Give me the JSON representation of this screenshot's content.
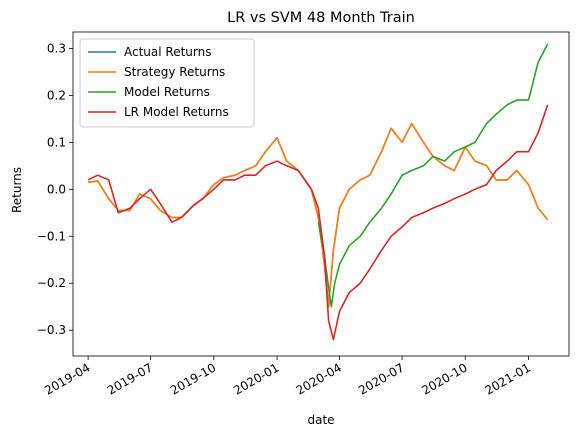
{
  "chart_data": {
    "type": "line",
    "title": "LR vs SVM 48 Month Train",
    "xlabel": "date",
    "ylabel": "Returns",
    "xlim": [
      "2019-03-10",
      "2021-03-01"
    ],
    "ylim": [
      -0.355,
      0.335
    ],
    "x_ticks": [
      {
        "date": "2019-04-01",
        "label": "2019-04"
      },
      {
        "date": "2019-07-01",
        "label": "2019-07"
      },
      {
        "date": "2019-10-01",
        "label": "2019-10"
      },
      {
        "date": "2020-01-01",
        "label": "2020-01"
      },
      {
        "date": "2020-04-01",
        "label": "2020-04"
      },
      {
        "date": "2020-07-01",
        "label": "2020-07"
      },
      {
        "date": "2020-10-01",
        "label": "2020-10"
      },
      {
        "date": "2021-01-01",
        "label": "2021-01"
      }
    ],
    "y_ticks": [
      {
        "value": -0.3,
        "label": "−0.3"
      },
      {
        "value": -0.2,
        "label": "−0.2"
      },
      {
        "value": -0.1,
        "label": "−0.1"
      },
      {
        "value": 0.0,
        "label": "0.0"
      },
      {
        "value": 0.1,
        "label": "0.1"
      },
      {
        "value": 0.2,
        "label": "0.2"
      },
      {
        "value": 0.3,
        "label": "0.3"
      }
    ],
    "legend_position": "top-left",
    "grid": false,
    "series": [
      {
        "name": "Actual Returns",
        "color": "#1f77b4",
        "x": [
          "2019-04-01",
          "2019-04-15",
          "2019-05-01",
          "2019-05-15",
          "2019-06-01",
          "2019-06-15",
          "2019-07-01",
          "2019-07-15",
          "2019-08-01",
          "2019-08-15",
          "2019-09-01",
          "2019-09-15",
          "2019-10-01",
          "2019-10-15",
          "2019-11-01",
          "2019-11-15",
          "2019-12-01",
          "2019-12-15",
          "2020-01-01",
          "2020-01-15",
          "2020-02-01",
          "2020-02-20",
          "2020-03-01",
          "2020-03-10",
          "2020-03-16",
          "2020-03-23",
          "2020-04-01",
          "2020-04-15",
          "2020-05-01",
          "2020-05-15",
          "2020-06-01",
          "2020-06-15",
          "2020-07-01",
          "2020-07-15",
          "2020-08-01",
          "2020-08-15",
          "2020-09-01",
          "2020-09-15",
          "2020-10-01",
          "2020-10-15",
          "2020-11-01",
          "2020-11-15",
          "2020-12-01",
          "2020-12-15",
          "2021-01-01",
          "2021-01-15",
          "2021-01-29"
        ],
        "y": [
          0.015,
          0.018,
          -0.02,
          -0.045,
          -0.045,
          -0.01,
          -0.02,
          -0.045,
          -0.06,
          -0.06,
          -0.035,
          -0.02,
          0.01,
          0.025,
          0.03,
          0.04,
          0.05,
          0.08,
          0.11,
          0.06,
          0.04,
          0.0,
          -0.06,
          -0.16,
          -0.25,
          -0.13,
          -0.04,
          0.0,
          0.02,
          0.03,
          0.08,
          0.13,
          0.1,
          0.14,
          0.1,
          0.07,
          0.05,
          0.04,
          0.09,
          0.06,
          0.05,
          0.02,
          0.02,
          0.04,
          0.01,
          -0.04,
          -0.065
        ]
      },
      {
        "name": "Strategy Returns",
        "color": "#ff7f0e",
        "x": [
          "2019-04-01",
          "2019-04-15",
          "2019-05-01",
          "2019-05-15",
          "2019-06-01",
          "2019-06-15",
          "2019-07-01",
          "2019-07-15",
          "2019-08-01",
          "2019-08-15",
          "2019-09-01",
          "2019-09-15",
          "2019-10-01",
          "2019-10-15",
          "2019-11-01",
          "2019-11-15",
          "2019-12-01",
          "2019-12-15",
          "2020-01-01",
          "2020-01-15",
          "2020-02-01",
          "2020-02-20",
          "2020-03-01",
          "2020-03-10",
          "2020-03-16",
          "2020-03-23",
          "2020-04-01",
          "2020-04-15",
          "2020-05-01",
          "2020-05-15",
          "2020-06-01",
          "2020-06-15",
          "2020-07-01",
          "2020-07-15",
          "2020-08-01",
          "2020-08-15",
          "2020-09-01",
          "2020-09-15",
          "2020-10-01",
          "2020-10-15",
          "2020-11-01",
          "2020-11-15",
          "2020-12-01",
          "2020-12-15",
          "2021-01-01",
          "2021-01-15",
          "2021-01-29"
        ],
        "y": [
          0.015,
          0.018,
          -0.02,
          -0.045,
          -0.045,
          -0.01,
          -0.02,
          -0.045,
          -0.06,
          -0.06,
          -0.035,
          -0.02,
          0.01,
          0.025,
          0.03,
          0.04,
          0.05,
          0.08,
          0.11,
          0.06,
          0.04,
          0.0,
          -0.06,
          -0.16,
          -0.25,
          -0.13,
          -0.04,
          0.0,
          0.02,
          0.03,
          0.08,
          0.13,
          0.1,
          0.14,
          0.1,
          0.07,
          0.05,
          0.04,
          0.09,
          0.06,
          0.05,
          0.02,
          0.02,
          0.04,
          0.01,
          -0.04,
          -0.065
        ]
      },
      {
        "name": "Model Returns",
        "color": "#2ca02c",
        "x": [
          "2020-03-01",
          "2020-03-10",
          "2020-03-16",
          "2020-03-20",
          "2020-03-25",
          "2020-04-01",
          "2020-04-15",
          "2020-05-01",
          "2020-05-15",
          "2020-06-01",
          "2020-06-15",
          "2020-07-01",
          "2020-07-15",
          "2020-08-01",
          "2020-08-15",
          "2020-09-01",
          "2020-09-15",
          "2020-10-01",
          "2020-10-15",
          "2020-11-01",
          "2020-11-15",
          "2020-12-01",
          "2020-12-15",
          "2021-01-01",
          "2021-01-15",
          "2021-01-29"
        ],
        "y": [
          -0.07,
          -0.14,
          -0.21,
          -0.25,
          -0.2,
          -0.16,
          -0.12,
          -0.1,
          -0.07,
          -0.04,
          -0.01,
          0.03,
          0.04,
          0.05,
          0.07,
          0.06,
          0.08,
          0.09,
          0.1,
          0.14,
          0.16,
          0.18,
          0.19,
          0.19,
          0.27,
          0.31
        ]
      },
      {
        "name": "LR Model Returns",
        "color": "#d62728",
        "x": [
          "2019-04-01",
          "2019-04-15",
          "2019-05-01",
          "2019-05-15",
          "2019-06-01",
          "2019-06-15",
          "2019-07-01",
          "2019-07-15",
          "2019-08-01",
          "2019-08-15",
          "2019-09-01",
          "2019-09-15",
          "2019-10-01",
          "2019-10-15",
          "2019-11-01",
          "2019-11-15",
          "2019-12-01",
          "2019-12-15",
          "2020-01-01",
          "2020-01-15",
          "2020-02-01",
          "2020-02-20",
          "2020-03-01",
          "2020-03-10",
          "2020-03-16",
          "2020-03-23",
          "2020-04-01",
          "2020-04-15",
          "2020-05-01",
          "2020-05-15",
          "2020-06-01",
          "2020-06-15",
          "2020-07-01",
          "2020-07-15",
          "2020-08-01",
          "2020-08-15",
          "2020-09-01",
          "2020-09-15",
          "2020-10-01",
          "2020-10-15",
          "2020-11-01",
          "2020-11-15",
          "2020-12-01",
          "2020-12-15",
          "2021-01-01",
          "2021-01-15",
          "2021-01-29"
        ],
        "y": [
          0.02,
          0.03,
          0.02,
          -0.05,
          -0.04,
          -0.02,
          0.0,
          -0.03,
          -0.07,
          -0.06,
          -0.035,
          -0.02,
          0.0,
          0.02,
          0.02,
          0.03,
          0.03,
          0.05,
          0.06,
          0.05,
          0.04,
          0.0,
          -0.04,
          -0.14,
          -0.28,
          -0.32,
          -0.26,
          -0.22,
          -0.2,
          -0.17,
          -0.13,
          -0.1,
          -0.08,
          -0.06,
          -0.05,
          -0.04,
          -0.03,
          -0.02,
          -0.01,
          0.0,
          0.01,
          0.04,
          0.06,
          0.08,
          0.08,
          0.12,
          0.18
        ]
      }
    ]
  }
}
